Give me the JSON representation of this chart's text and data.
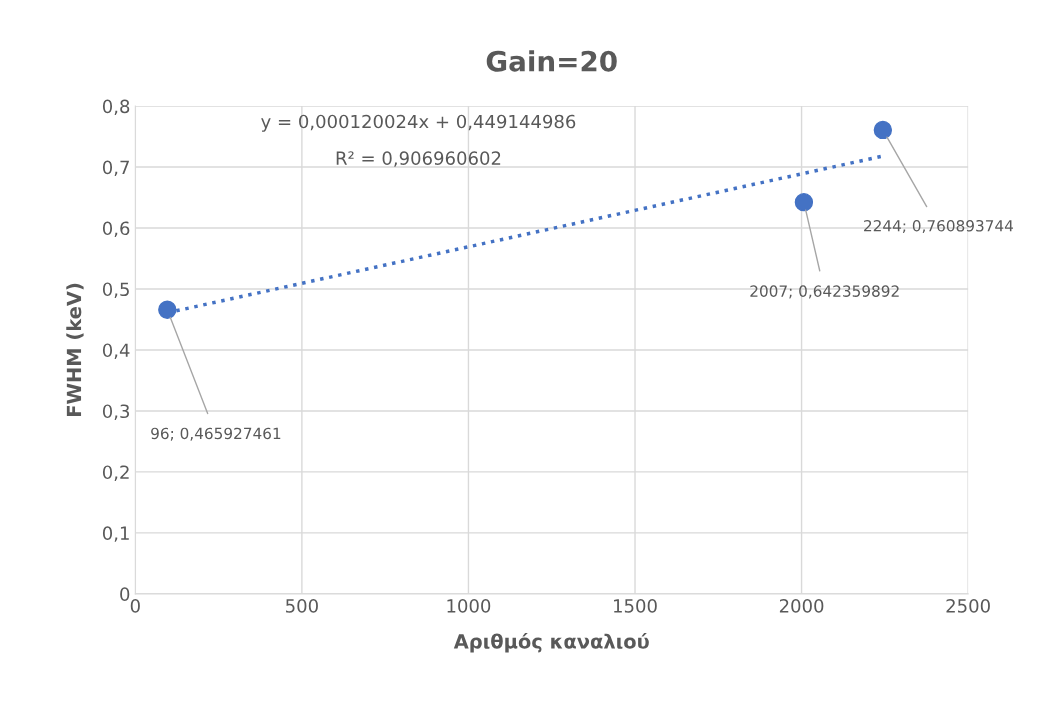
{
  "chart_data": {
    "type": "scatter",
    "title": "Gain=20",
    "xlabel": "Αριθμός καναλιού",
    "ylabel": "FWHM (keV)",
    "annotations": [
      "y = 0,000120024x + 0,449144986",
      "R² = 0,906960602"
    ],
    "series": [
      {
        "color": "#4472c4",
        "x": [
          96,
          2007,
          2244
        ],
        "values": [
          0.465927461,
          0.642359892,
          0.760893744
        ],
        "value_labels": [
          "96; 0,465927461",
          "2007; 0,642359892",
          "2244; 0,760893744"
        ],
        "marker": "circle"
      },
      {
        "type": "line",
        "color": "#4472c4",
        "x": [
          96,
          2244
        ],
        "values": [
          0.461,
          0.718
        ],
        "line_style": "dotted",
        "marker": "none"
      }
    ],
    "xlim": [
      0,
      2500
    ],
    "xticks": [
      0,
      500,
      1000,
      1500,
      2000,
      2500
    ],
    "ylim": [
      0,
      0.8
    ],
    "yticks": [
      0,
      {
        "value": 0.1,
        "label": "0,1"
      },
      {
        "value": 0.2,
        "label": "0,2"
      },
      {
        "value": 0.3,
        "label": "0,3"
      },
      {
        "value": 0.4,
        "label": "0,4"
      },
      {
        "value": 0.5,
        "label": "0,5"
      },
      {
        "value": 0.6,
        "label": "0,6"
      },
      {
        "value": 0.7,
        "label": "0,7"
      },
      {
        "value": 0.8,
        "label": "0,8"
      }
    ],
    "grid": true,
    "legend": false
  }
}
